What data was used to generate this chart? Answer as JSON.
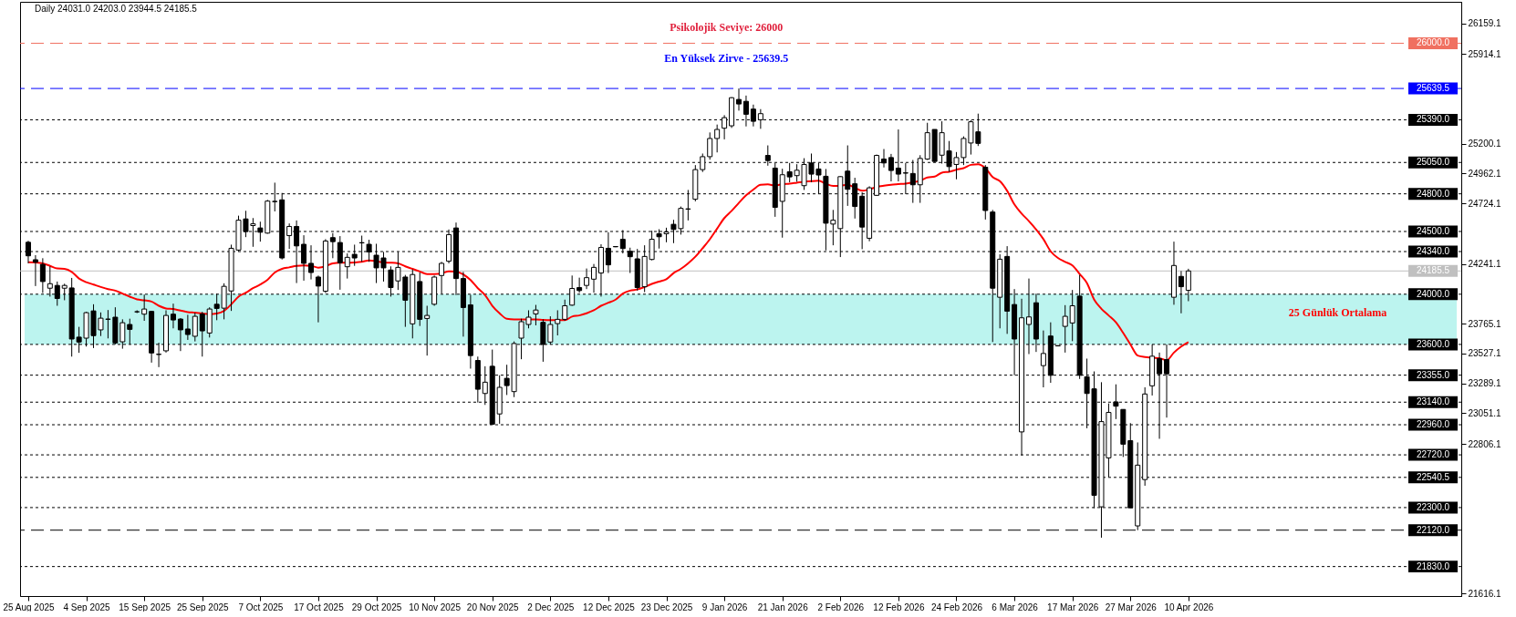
{
  "chart_data": {
    "type": "candlestick",
    "title": "Daily  24031.0 24203.0 23944.5 24185.5",
    "categories": [
      "25 Aug 2025",
      null,
      null,
      null,
      null,
      null,
      null,
      null,
      "4 Sep 2025",
      null,
      null,
      null,
      null,
      null,
      null,
      null,
      "15 Sep 2025",
      null,
      null,
      null,
      null,
      null,
      null,
      null,
      "25 Sep 2025",
      null,
      null,
      null,
      null,
      null,
      null,
      null,
      "7 Oct 2025",
      null,
      null,
      null,
      null,
      null,
      null,
      null,
      "17 Oct 2025",
      null,
      null,
      null,
      null,
      null,
      null,
      null,
      "29 Oct 2025",
      null,
      null,
      null,
      null,
      null,
      null,
      null,
      "10 Nov 2025",
      null,
      null,
      null,
      null,
      null,
      null,
      null,
      "20 Nov 2025",
      null,
      null,
      null,
      null,
      null,
      null,
      null,
      "2 Dec 2025",
      null,
      null,
      null,
      null,
      null,
      null,
      null,
      "12 Dec 2025",
      null,
      null,
      null,
      null,
      null,
      null,
      null,
      "23 Dec 2025",
      null,
      null,
      null,
      null,
      null,
      null,
      null,
      "9 Jan 2026",
      null,
      null,
      null,
      null,
      null,
      null,
      null,
      "21 Jan 2026",
      null,
      null,
      null,
      null,
      null,
      null,
      null,
      "2 Feb 2026",
      null,
      null,
      null,
      null,
      null,
      null,
      null,
      "12 Feb 2026",
      null,
      null,
      null,
      null,
      null,
      null,
      null,
      "24 Feb 2026",
      null,
      null,
      null,
      null,
      null,
      null,
      null,
      "6 Mar 2026",
      null,
      null,
      null,
      null,
      null,
      null,
      null,
      "17 Mar 2026",
      null,
      null,
      null,
      null,
      null,
      null,
      null,
      "27 Mar 2026",
      null,
      null,
      null,
      null,
      null,
      null,
      null,
      "10 Apr 2026"
    ],
    "ohlc": [
      [
        24414,
        24426,
        24246,
        24306
      ],
      [
        24275,
        24311,
        24065,
        24255
      ],
      [
        24238,
        24287,
        24010,
        24101
      ],
      [
        24048,
        24222,
        23981,
        24084
      ],
      [
        24070,
        24101,
        23908,
        23966
      ],
      [
        24048,
        24084,
        23952,
        24070
      ],
      [
        24050,
        24130,
        23503,
        23643
      ],
      [
        23658,
        23740,
        23533,
        23619
      ],
      [
        23650,
        23860,
        23583,
        23853
      ],
      [
        23867,
        23920,
        23571,
        23670
      ],
      [
        23716,
        23855,
        23667,
        23809
      ],
      [
        23802,
        23874,
        23648,
        23800
      ],
      [
        23817,
        23896,
        23600,
        23612
      ],
      [
        23621,
        23800,
        23566,
        23773
      ],
      [
        23759,
        23805,
        23602,
        23720
      ],
      [
        23860,
        23872,
        23850,
        23860
      ],
      [
        23841,
        23997,
        23788,
        23882
      ],
      [
        23863,
        23866,
        23455,
        23532
      ],
      [
        23520,
        23614,
        23419,
        23522
      ],
      [
        23549,
        23872,
        23535,
        23831
      ],
      [
        23841,
        23925,
        23728,
        23795
      ],
      [
        23802,
        23810,
        23547,
        23716
      ],
      [
        23723,
        23836,
        23636,
        23679
      ],
      [
        23665,
        23853,
        23624,
        23824
      ],
      [
        23843,
        23860,
        23503,
        23708
      ],
      [
        23691,
        23896,
        23655,
        23882
      ],
      [
        23920,
        24005,
        23793,
        23887
      ],
      [
        23889,
        24087,
        23800,
        24063
      ],
      [
        24026,
        24395,
        23867,
        24366
      ],
      [
        24352,
        24626,
        24342,
        24590
      ],
      [
        24600,
        24665,
        24455,
        24499
      ],
      [
        24547,
        24607,
        24378,
        24561
      ],
      [
        24528,
        24578,
        24419,
        24494
      ],
      [
        24487,
        24752,
        24482,
        24742
      ],
      [
        24740,
        24889,
        24660,
        24738
      ],
      [
        24752,
        24807,
        24277,
        24289
      ],
      [
        24467,
        24564,
        24361,
        24540
      ],
      [
        24540,
        24588,
        24089,
        24385
      ],
      [
        24398,
        24470,
        24108,
        24246
      ],
      [
        24246,
        24390,
        24118,
        24173
      ],
      [
        24137,
        24149,
        23776,
        24065
      ],
      [
        24024,
        24439,
        24010,
        24424
      ],
      [
        24451,
        24487,
        24287,
        24419
      ],
      [
        24412,
        24463,
        24036,
        24251
      ],
      [
        24219,
        24325,
        24125,
        24294
      ],
      [
        24318,
        24395,
        24226,
        24289
      ],
      [
        24411,
        24467,
        24258,
        24409
      ],
      [
        24398,
        24434,
        24258,
        24337
      ],
      [
        24311,
        24402,
        24089,
        24210
      ],
      [
        24289,
        24337,
        24101,
        24210
      ],
      [
        24193,
        24222,
        23981,
        24053
      ],
      [
        24106,
        24337,
        24034,
        24214
      ],
      [
        24137,
        24154,
        23740,
        23952
      ],
      [
        23764,
        24198,
        23648,
        24157
      ],
      [
        24101,
        24173,
        23747,
        23800
      ],
      [
        23807,
        23908,
        23511,
        23831
      ],
      [
        23920,
        24149,
        23908,
        24137
      ],
      [
        24149,
        24258,
        24005,
        24246
      ],
      [
        24263,
        24516,
        24246,
        24475
      ],
      [
        24528,
        24571,
        23993,
        24125
      ],
      [
        24125,
        24178,
        23662,
        23894
      ],
      [
        23915,
        23995,
        23407,
        23511
      ],
      [
        23472,
        23503,
        23137,
        23243
      ],
      [
        23209,
        23426,
        23118,
        23299
      ],
      [
        23426,
        23559,
        22960,
        22964
      ],
      [
        23046,
        23354,
        22968,
        23258
      ],
      [
        23330,
        23438,
        23197,
        23272
      ],
      [
        23224,
        23624,
        23180,
        23607
      ],
      [
        23650,
        23805,
        23482,
        23781
      ],
      [
        23759,
        23872,
        23728,
        23817
      ],
      [
        23843,
        23915,
        23752,
        23874
      ],
      [
        23776,
        23800,
        23462,
        23600
      ],
      [
        23619,
        23824,
        23600,
        23759
      ],
      [
        23766,
        23872,
        23672,
        23800
      ],
      [
        23800,
        23957,
        23788,
        23908
      ],
      [
        23913,
        24149,
        23908,
        24046
      ],
      [
        24053,
        24132,
        24012,
        24029
      ],
      [
        24070,
        24205,
        24041,
        24132
      ],
      [
        24120,
        24241,
        24012,
        24214
      ],
      [
        24169,
        24398,
        23981,
        24373
      ],
      [
        24366,
        24494,
        24169,
        24234
      ],
      [
        24380,
        24383,
        24375,
        24378
      ],
      [
        24438,
        24511,
        24325,
        24364
      ],
      [
        24342,
        24371,
        24169,
        24299
      ],
      [
        24282,
        24361,
        24029,
        24053
      ],
      [
        24060,
        24390,
        24017,
        24301
      ],
      [
        24277,
        24506,
        24270,
        24438
      ],
      [
        24482,
        24518,
        24364,
        24458
      ],
      [
        24482,
        24530,
        24414,
        24496
      ],
      [
        24557,
        24593,
        24407,
        24516
      ],
      [
        24523,
        24699,
        24475,
        24684
      ],
      [
        24680,
        24831,
        24588,
        24678
      ],
      [
        24757,
        25029,
        24740,
        24993
      ],
      [
        24993,
        25121,
        24974,
        25096
      ],
      [
        25096,
        25289,
        25072,
        25241
      ],
      [
        25241,
        25352,
        25130,
        25313
      ],
      [
        25323,
        25427,
        25234,
        25407
      ],
      [
        25342,
        25570,
        25325,
        25566
      ],
      [
        25552,
        25639.5,
        25463,
        25516
      ],
      [
        25537,
        25583,
        25337,
        25434
      ],
      [
        25475,
        25511,
        25337,
        25378
      ],
      [
        25390,
        25475,
        25318,
        25439
      ],
      [
        25106,
        25186,
        25024,
        25065
      ],
      [
        25005,
        25046,
        24617,
        24692
      ],
      [
        24740,
        25000,
        24451,
        24952
      ],
      [
        24976,
        25046,
        24892,
        24935
      ],
      [
        24945,
        25036,
        24896,
        24988
      ],
      [
        24865,
        25084,
        24831,
        25034
      ],
      [
        25046,
        25121,
        24892,
        24957
      ],
      [
        24998,
        25046,
        24798,
        24950
      ],
      [
        24940,
        24998,
        24349,
        24566
      ],
      [
        24559,
        24672,
        24390,
        24590
      ],
      [
        24523,
        24940,
        24296,
        24937
      ],
      [
        24981,
        25186,
        24704,
        24836
      ],
      [
        24880,
        24928,
        24603,
        24699
      ],
      [
        24781,
        24812,
        24359,
        24535
      ],
      [
        24446,
        24860,
        24422,
        24848
      ],
      [
        24788,
        25113,
        24783,
        25106
      ],
      [
        25077,
        25157,
        25010,
        25046
      ],
      [
        25089,
        25118,
        24899,
        24986
      ],
      [
        25005,
        25313,
        24899,
        24957
      ],
      [
        24967,
        25046,
        24798,
        24965
      ],
      [
        24962,
        25070,
        24728,
        24872
      ],
      [
        24872,
        25108,
        24728,
        25082
      ],
      [
        25077,
        25366,
        25070,
        25287
      ],
      [
        25313,
        25313,
        25053,
        25058
      ],
      [
        25108,
        25378,
        25041,
        25287
      ],
      [
        25142,
        25221,
        24974,
        25017
      ],
      [
        25034,
        25133,
        24916,
        25089
      ],
      [
        25089,
        25258,
        25029,
        25241
      ],
      [
        25205,
        25386,
        25113,
        25374
      ],
      [
        25294,
        25439,
        25181,
        25202
      ],
      [
        25012,
        25029,
        24595,
        24667
      ],
      [
        24655,
        24672,
        23619,
        24048
      ],
      [
        23976,
        24318,
        23728,
        24279
      ],
      [
        24301,
        24383,
        23684,
        23865
      ],
      [
        23918,
        24041,
        23354,
        23643
      ],
      [
        22903,
        23964,
        22715,
        23812
      ],
      [
        23759,
        24125,
        23523,
        23819
      ],
      [
        23932,
        24005,
        23540,
        23643
      ],
      [
        23431,
        23711,
        23258,
        23528
      ],
      [
        23667,
        23776,
        23294,
        23354
      ],
      [
        23590,
        23593,
        23585,
        23588
      ],
      [
        23744,
        23913,
        23535,
        23824
      ],
      [
        23771,
        24034,
        23626,
        23908
      ],
      [
        23985,
        24154,
        23325,
        23354
      ],
      [
        23342,
        23487,
        22932,
        23209
      ],
      [
        23246,
        23385,
        22294,
        22397
      ],
      [
        22306,
        23299,
        22060,
        22985
      ],
      [
        22696,
        23130,
        22542,
        23058
      ],
      [
        23142,
        23282,
        23005,
        23108
      ],
      [
        23082,
        23082,
        22703,
        22805
      ],
      [
        22833,
        22973,
        22298,
        22298
      ],
      [
        22154,
        22819,
        22120,
        22638
      ],
      [
        22523,
        23258,
        22474,
        23205
      ],
      [
        23270,
        23600,
        23193,
        23506
      ],
      [
        23487,
        23535,
        22848,
        23366
      ],
      [
        23479,
        23600,
        23017,
        23366
      ],
      [
        23976,
        24419,
        23916,
        24229
      ],
      [
        24142,
        24185,
        23848,
        24060
      ],
      [
        24031.0,
        24203.0,
        23944.5,
        24185.5
      ]
    ],
    "series": [
      {
        "type": "line",
        "name": "25 Günlük Ortalama",
        "color": "#ff0000",
        "values": [
          24255,
          24253,
          24246,
          24226,
          24205,
          24202,
          24178,
          24125,
          24096,
          24077,
          24058,
          24041,
          24029,
          24005,
          23981,
          23959,
          23952,
          23942,
          23908,
          23887,
          23882,
          23870,
          23858,
          23853,
          23846,
          23841,
          23846,
          23867,
          23920,
          23981,
          24012,
          24048,
          24077,
          24115,
          24173,
          24202,
          24214,
          24226,
          24229,
          24226,
          24212,
          24222,
          24246,
          24251,
          24251,
          24253,
          24258,
          24270,
          24263,
          24253,
          24251,
          24246,
          24222,
          24202,
          24181,
          24161,
          24161,
          24166,
          24183,
          24181,
          24157,
          24113,
          24048,
          23993,
          23908,
          23848,
          23805,
          23800,
          23800,
          23800,
          23800,
          23795,
          23793,
          23793,
          23793,
          23822,
          23831,
          23848,
          23872,
          23908,
          23932,
          23957,
          24005,
          24029,
          24038,
          24058,
          24082,
          24101,
          24120,
          24169,
          24202,
          24246,
          24299,
          24366,
          24438,
          24523,
          24607,
          24664,
          24728,
          24788,
          24834,
          24872,
          24875,
          24867,
          24877,
          24882,
          24889,
          24896,
          24901,
          24904,
          24880,
          24863,
          24865,
          24872,
          24848,
          24824,
          24836,
          24855,
          24865,
          24872,
          24877,
          24882,
          24892,
          24904,
          24930,
          24937,
          24969,
          24976,
          24992,
          25005,
          25031,
          25036,
          25005,
          24933,
          24901,
          24824,
          24716,
          24643,
          24583,
          24516,
          24439,
          24342,
          24289,
          24258,
          24229,
          24161,
          24089,
          23957,
          23884,
          23831,
          23776,
          23692,
          23600,
          23511,
          23499,
          23494,
          23491,
          23474,
          23535,
          23583,
          23619
        ]
      }
    ],
    "ylim": [
      21595,
      26330
    ],
    "yticks": [
      26159.1,
      25914.1,
      25200.1,
      24962.1,
      24724.1,
      24241.1,
      23765.1,
      23527.1,
      23289.1,
      23051.1,
      22806.1,
      21616.1
    ],
    "ref_lines": [
      {
        "axis": "y",
        "value": 26000,
        "label": "26000.0",
        "color": "#f07060",
        "line_style": "dashed"
      },
      {
        "axis": "y",
        "value": 25639.5,
        "label": "25639.5",
        "color": "#0000ff",
        "line_style": "dashed"
      },
      {
        "axis": "y",
        "value": 25390,
        "label": "25390.0",
        "color": "#000000",
        "line_style": "dotted"
      },
      {
        "axis": "y",
        "value": 25050,
        "label": "25050.0",
        "color": "#000000",
        "line_style": "dotted"
      },
      {
        "axis": "y",
        "value": 24800,
        "label": "24800.0",
        "color": "#000000",
        "line_style": "dotted"
      },
      {
        "axis": "y",
        "value": 24500,
        "label": "24500.0",
        "color": "#000000",
        "line_style": "dotted"
      },
      {
        "axis": "y",
        "value": 24340,
        "label": "24340.0",
        "color": "#000000",
        "line_style": "dotted"
      },
      {
        "axis": "y",
        "value": 24185.5,
        "label": "24185.5",
        "color": "#c0c0c0",
        "line_style": "solid"
      },
      {
        "axis": "y",
        "value": 24000,
        "label": "24000.0",
        "color": "#000000",
        "line_style": "dotted"
      },
      {
        "axis": "y",
        "value": 23600,
        "label": "23600.0",
        "color": "#000000",
        "line_style": "dotted"
      },
      {
        "axis": "y",
        "value": 23355,
        "label": "23355.0",
        "color": "#000000",
        "line_style": "dotted"
      },
      {
        "axis": "y",
        "value": 23140,
        "label": "23140.0",
        "color": "#000000",
        "line_style": "dotted"
      },
      {
        "axis": "y",
        "value": 22960,
        "label": "22960.0",
        "color": "#000000",
        "line_style": "dotted"
      },
      {
        "axis": "y",
        "value": 22720,
        "label": "22720.0",
        "color": "#000000",
        "line_style": "dotted"
      },
      {
        "axis": "y",
        "value": 22540.5,
        "label": "22540.5",
        "color": "#000000",
        "line_style": "dotted"
      },
      {
        "axis": "y",
        "value": 22300,
        "label": "22300.0",
        "color": "#000000",
        "line_style": "dotted"
      },
      {
        "axis": "y",
        "value": 22120,
        "label": "22120.0",
        "color": "#000000",
        "line_style": "dashed"
      },
      {
        "axis": "y",
        "value": 21830,
        "label": "21830.0",
        "color": "#000000",
        "line_style": "dotted"
      }
    ],
    "bands": [
      {
        "axis": "y",
        "from": 23600,
        "to": 24000,
        "color": "#40e0d0"
      }
    ],
    "annotations": [
      "Psikolojik Seviye: 26000",
      "En Yüksek Zirve - 25639.5"
    ]
  }
}
